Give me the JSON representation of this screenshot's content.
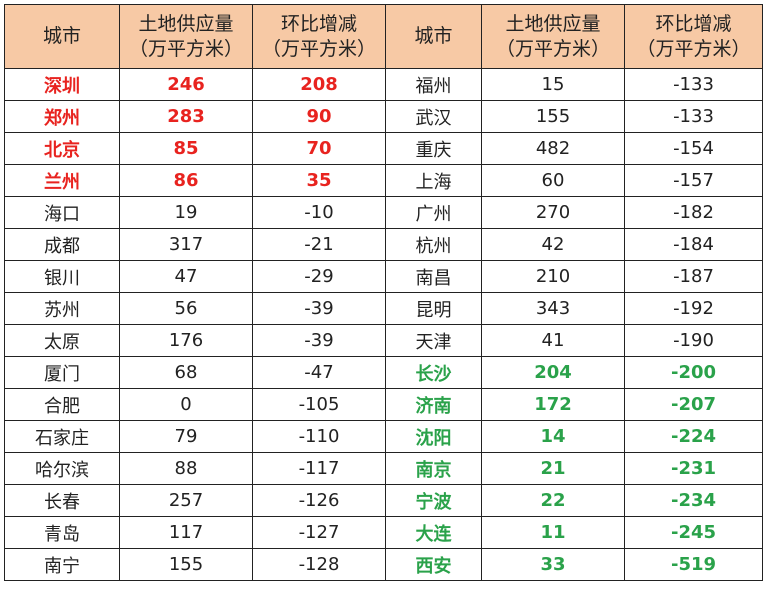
{
  "colors": {
    "header_bg": "#f7c9a5",
    "highlight_red": "#e8231f",
    "highlight_green": "#2aa24a",
    "text": "#222222",
    "border": "#222222"
  },
  "header": {
    "city": "城市",
    "supply_line1": "土地供应量",
    "supply_line2": "（万平方米）",
    "change_line1": "环比增减",
    "change_line2": "（万平方米）"
  },
  "left_rows": [
    {
      "city": "深圳",
      "supply": "246",
      "change": "208",
      "highlight": "red"
    },
    {
      "city": "郑州",
      "supply": "283",
      "change": "90",
      "highlight": "red"
    },
    {
      "city": "北京",
      "supply": "85",
      "change": "70",
      "highlight": "red"
    },
    {
      "city": "兰州",
      "supply": "86",
      "change": "35",
      "highlight": "red"
    },
    {
      "city": "海口",
      "supply": "19",
      "change": "-10",
      "highlight": "none"
    },
    {
      "city": "成都",
      "supply": "317",
      "change": "-21",
      "highlight": "none"
    },
    {
      "city": "银川",
      "supply": "47",
      "change": "-29",
      "highlight": "none"
    },
    {
      "city": "苏州",
      "supply": "56",
      "change": "-39",
      "highlight": "none"
    },
    {
      "city": "太原",
      "supply": "176",
      "change": "-39",
      "highlight": "none"
    },
    {
      "city": "厦门",
      "supply": "68",
      "change": "-47",
      "highlight": "none"
    },
    {
      "city": "合肥",
      "supply": "0",
      "change": "-105",
      "highlight": "none"
    },
    {
      "city": "石家庄",
      "supply": "79",
      "change": "-110",
      "highlight": "none"
    },
    {
      "city": "哈尔滨",
      "supply": "88",
      "change": "-117",
      "highlight": "none"
    },
    {
      "city": "长春",
      "supply": "257",
      "change": "-126",
      "highlight": "none"
    },
    {
      "city": "青岛",
      "supply": "117",
      "change": "-127",
      "highlight": "none"
    },
    {
      "city": "南宁",
      "supply": "155",
      "change": "-128",
      "highlight": "none"
    }
  ],
  "right_rows": [
    {
      "city": "福州",
      "supply": "15",
      "change": "-133",
      "highlight": "none"
    },
    {
      "city": "武汉",
      "supply": "155",
      "change": "-133",
      "highlight": "none"
    },
    {
      "city": "重庆",
      "supply": "482",
      "change": "-154",
      "highlight": "none"
    },
    {
      "city": "上海",
      "supply": "60",
      "change": "-157",
      "highlight": "none"
    },
    {
      "city": "广州",
      "supply": "270",
      "change": "-182",
      "highlight": "none"
    },
    {
      "city": "杭州",
      "supply": "42",
      "change": "-184",
      "highlight": "none"
    },
    {
      "city": "南昌",
      "supply": "210",
      "change": "-187",
      "highlight": "none"
    },
    {
      "city": "昆明",
      "supply": "343",
      "change": "-192",
      "highlight": "none"
    },
    {
      "city": "天津",
      "supply": "41",
      "change": "-190",
      "highlight": "none"
    },
    {
      "city": "长沙",
      "supply": "204",
      "change": "-200",
      "highlight": "green"
    },
    {
      "city": "济南",
      "supply": "172",
      "change": "-207",
      "highlight": "green"
    },
    {
      "city": "沈阳",
      "supply": "14",
      "change": "-224",
      "highlight": "green"
    },
    {
      "city": "南京",
      "supply": "21",
      "change": "-231",
      "highlight": "green"
    },
    {
      "city": "宁波",
      "supply": "22",
      "change": "-234",
      "highlight": "green"
    },
    {
      "city": "大连",
      "supply": "11",
      "change": "-245",
      "highlight": "green"
    },
    {
      "city": "西安",
      "supply": "33",
      "change": "-519",
      "highlight": "green"
    }
  ]
}
